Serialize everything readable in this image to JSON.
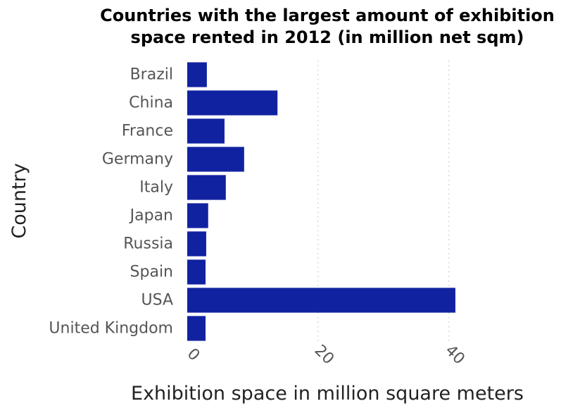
{
  "chart_data": {
    "type": "bar",
    "orientation": "horizontal",
    "title_lines": [
      "Countries with the largest amount of exhibition",
      "space rented in 2012 (in million net sqm)"
    ],
    "xlabel": "Exhibition space in million square meters",
    "ylabel": "Country",
    "categories": [
      "Brazil",
      "China",
      "France",
      "Germany",
      "Italy",
      "Japan",
      "Russia",
      "Spain",
      "USA",
      "United Kingdom"
    ],
    "values": [
      3.0,
      13.8,
      5.7,
      8.7,
      5.9,
      3.2,
      2.9,
      2.8,
      41.0,
      2.8
    ],
    "xlim": [
      0,
      48
    ],
    "xticks": [
      0,
      20,
      40
    ],
    "xtick_labels": [
      "0",
      "20",
      "40"
    ],
    "grid": "vertical dotted",
    "bar_color": "#1122a0"
  }
}
